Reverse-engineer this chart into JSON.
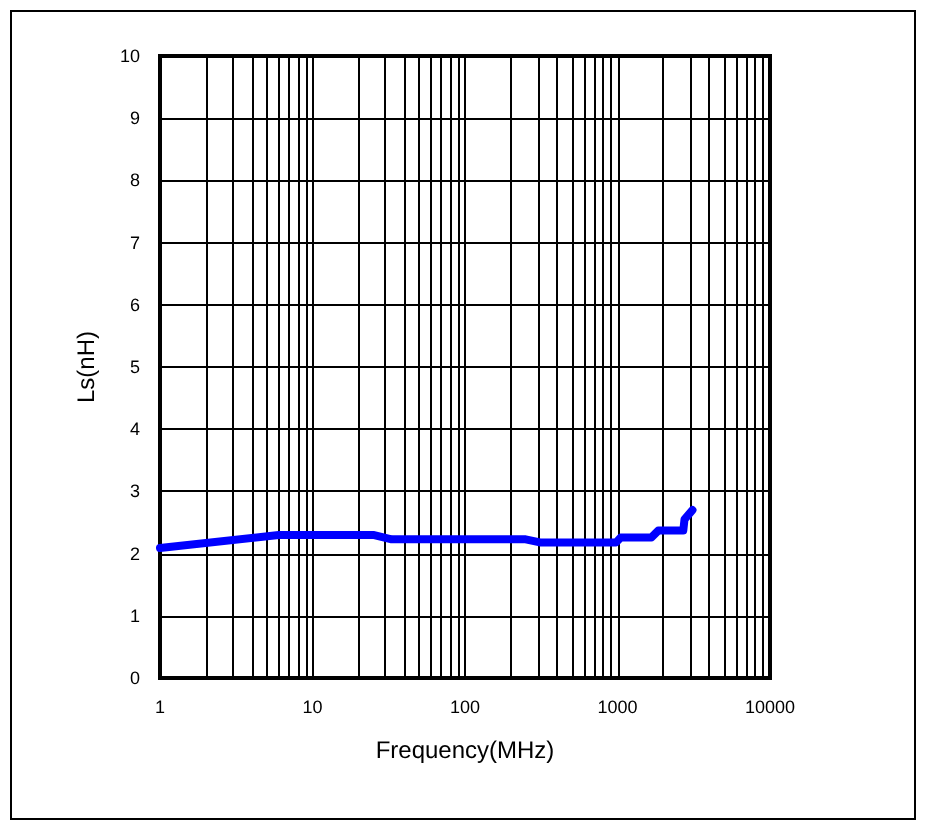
{
  "chart_data": {
    "type": "line",
    "xlabel": "Frequency(MHz)",
    "ylabel": "Ls(nH)",
    "log": "x",
    "grid": true,
    "marker": "none",
    "line_style": "solid",
    "xlim": [
      1,
      10000
    ],
    "ylim": [
      0,
      10
    ],
    "xticks": [
      1,
      {
        "value": 2,
        "label": null
      },
      {
        "value": 3,
        "label": null
      },
      {
        "value": 4,
        "label": null
      },
      {
        "value": 5,
        "label": null
      },
      {
        "value": 6,
        "label": null
      },
      {
        "value": 7,
        "label": null
      },
      {
        "value": 8,
        "label": null
      },
      {
        "value": 9,
        "label": null
      },
      10,
      {
        "value": 20,
        "label": null
      },
      {
        "value": 30,
        "label": null
      },
      {
        "value": 40,
        "label": null
      },
      {
        "value": 50,
        "label": null
      },
      {
        "value": 60,
        "label": null
      },
      {
        "value": 70,
        "label": null
      },
      {
        "value": 80,
        "label": null
      },
      {
        "value": 90,
        "label": null
      },
      100,
      {
        "value": 200,
        "label": null
      },
      {
        "value": 300,
        "label": null
      },
      {
        "value": 400,
        "label": null
      },
      {
        "value": 500,
        "label": null
      },
      {
        "value": 600,
        "label": null
      },
      {
        "value": 700,
        "label": null
      },
      {
        "value": 800,
        "label": null
      },
      {
        "value": 900,
        "label": null
      },
      1000,
      {
        "value": 2000,
        "label": null
      },
      {
        "value": 3000,
        "label": null
      },
      {
        "value": 4000,
        "label": null
      },
      {
        "value": 5000,
        "label": null
      },
      {
        "value": 6000,
        "label": null
      },
      {
        "value": 7000,
        "label": null
      },
      {
        "value": 8000,
        "label": null
      },
      {
        "value": 9000,
        "label": null
      },
      10000
    ],
    "yticks": [
      0,
      1,
      2,
      3,
      4,
      5,
      6,
      7,
      8,
      9,
      10
    ],
    "series": [
      {
        "color": "#0000ff",
        "x": [
          1,
          6,
          25,
          33,
          250,
          310,
          980,
          1050,
          1670,
          1850,
          2700,
          2750,
          3100
        ],
        "values": [
          2.09,
          2.3,
          2.3,
          2.23,
          2.23,
          2.18,
          2.18,
          2.26,
          2.26,
          2.37,
          2.37,
          2.55,
          2.7
        ]
      }
    ]
  }
}
